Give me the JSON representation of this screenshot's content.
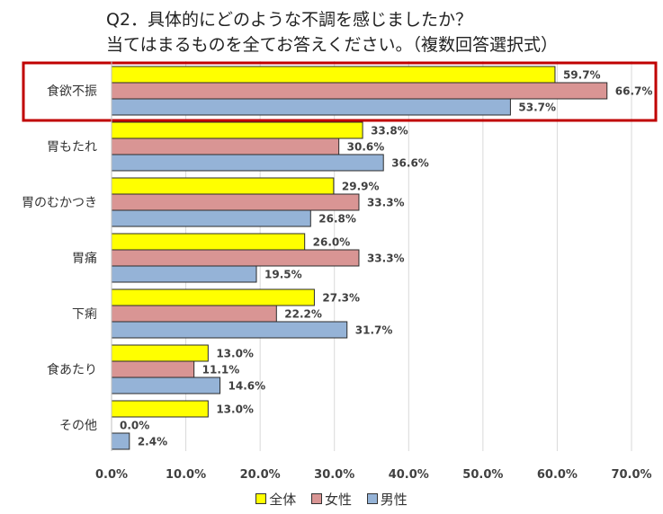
{
  "chart_data": {
    "type": "bar",
    "orientation": "horizontal",
    "title_line1": "Q2．具体的にどのような不調を感じましたか？",
    "title_line2": "当てはまるものを全てお答えください。（複数回答選択式）",
    "categories": [
      "食欲不振",
      "胃もたれ",
      "胃のむかつき",
      "胃痛",
      "下痢",
      "食あたり",
      "その他"
    ],
    "series": [
      {
        "name": "全体",
        "color": "#ffff00",
        "values": [
          59.7,
          33.8,
          29.9,
          26.0,
          27.3,
          13.0,
          13.0
        ]
      },
      {
        "name": "女性",
        "color": "#d99594",
        "values": [
          66.7,
          30.6,
          33.3,
          33.3,
          22.2,
          11.1,
          0.0
        ]
      },
      {
        "name": "男性",
        "color": "#95b3d7",
        "values": [
          53.7,
          36.6,
          26.8,
          19.5,
          31.7,
          14.6,
          2.4
        ]
      }
    ],
    "xlim": [
      0,
      70
    ],
    "xticks": [
      "0.0%",
      "10.0%",
      "20.0%",
      "30.0%",
      "40.0%",
      "50.0%",
      "60.0%",
      "70.0%"
    ],
    "value_suffix": "%",
    "highlight_category": "食欲不振",
    "highlight_color": "#c00000",
    "grid": true,
    "legend_position": "bottom"
  }
}
